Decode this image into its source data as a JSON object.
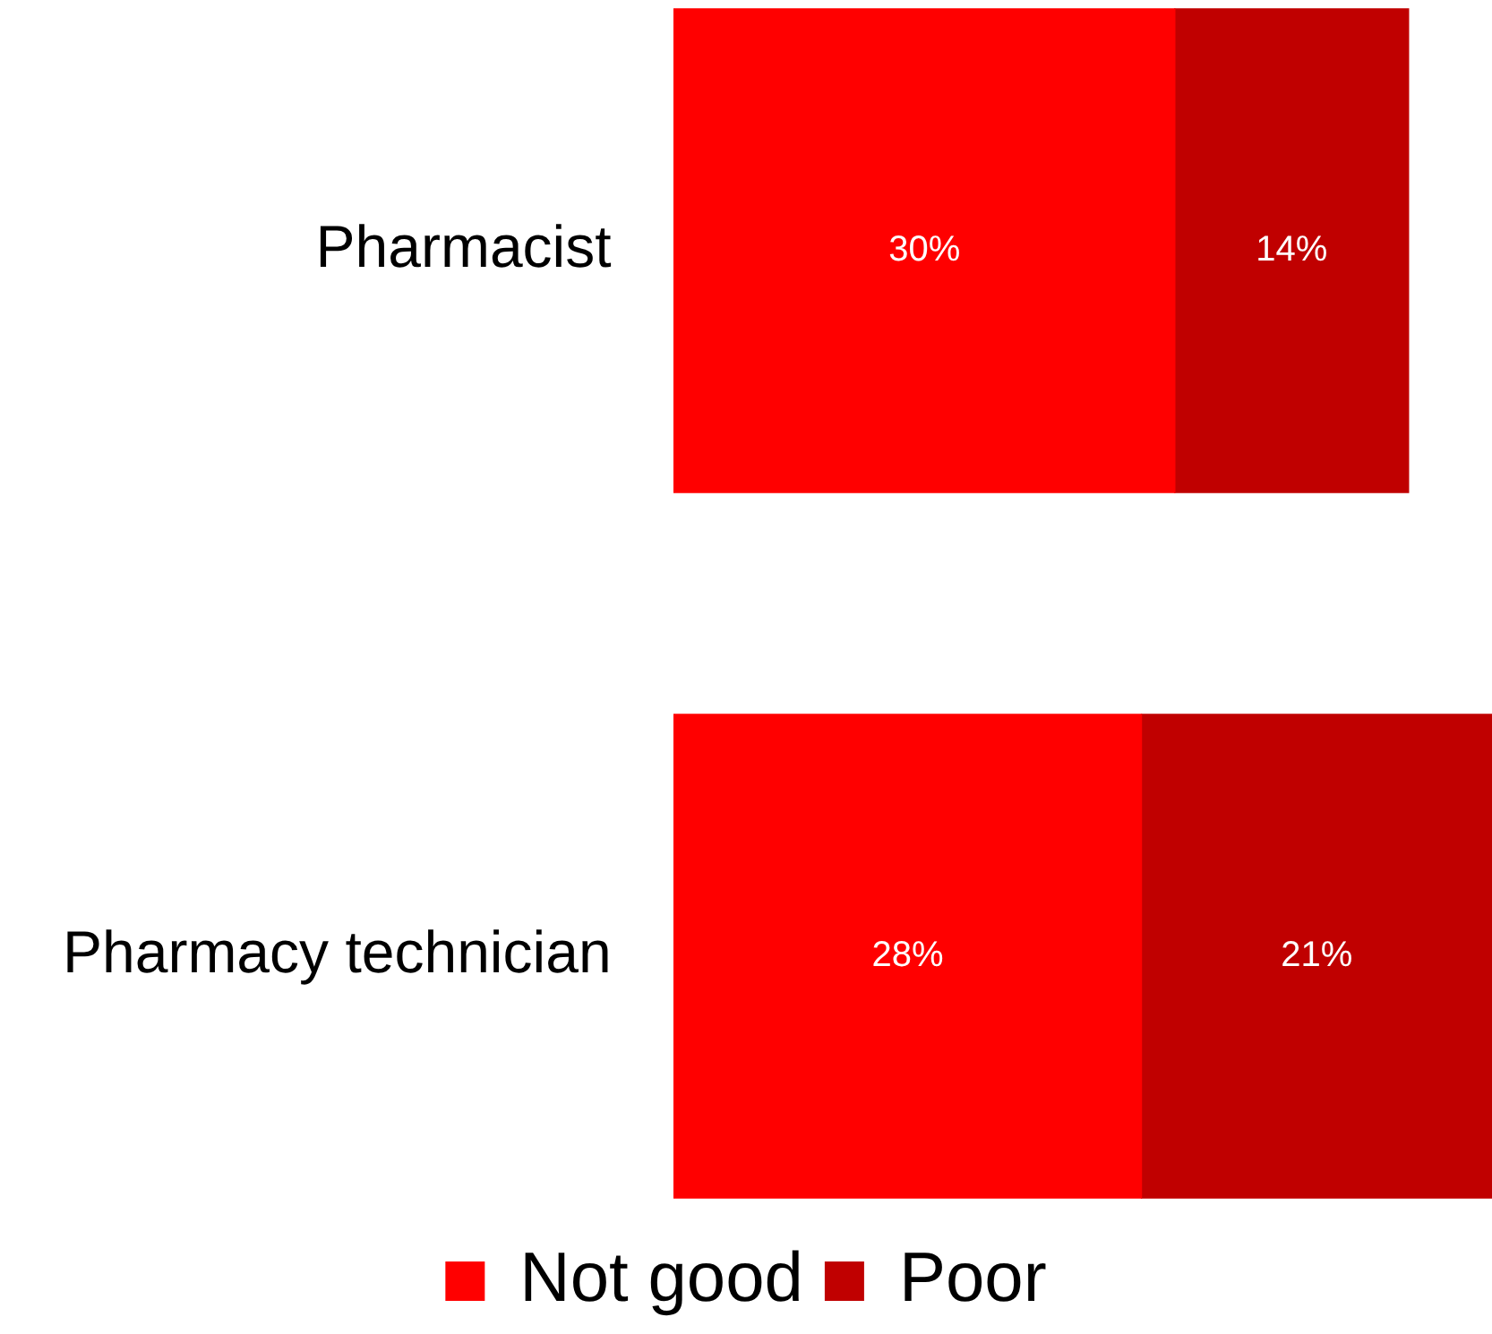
{
  "chart_data": {
    "type": "bar",
    "orientation": "horizontal",
    "stacked": true,
    "categories": [
      "Pharmacist",
      "Pharmacy technician"
    ],
    "series": [
      {
        "name": "Not good",
        "color": "#ff0000",
        "values": [
          30,
          28
        ],
        "value_labels": [
          "30%",
          "28%"
        ]
      },
      {
        "name": "Poor",
        "color": "#c00000",
        "values": [
          14,
          21
        ],
        "value_labels": [
          "14%",
          "21%"
        ]
      }
    ],
    "legend": "bottom"
  }
}
